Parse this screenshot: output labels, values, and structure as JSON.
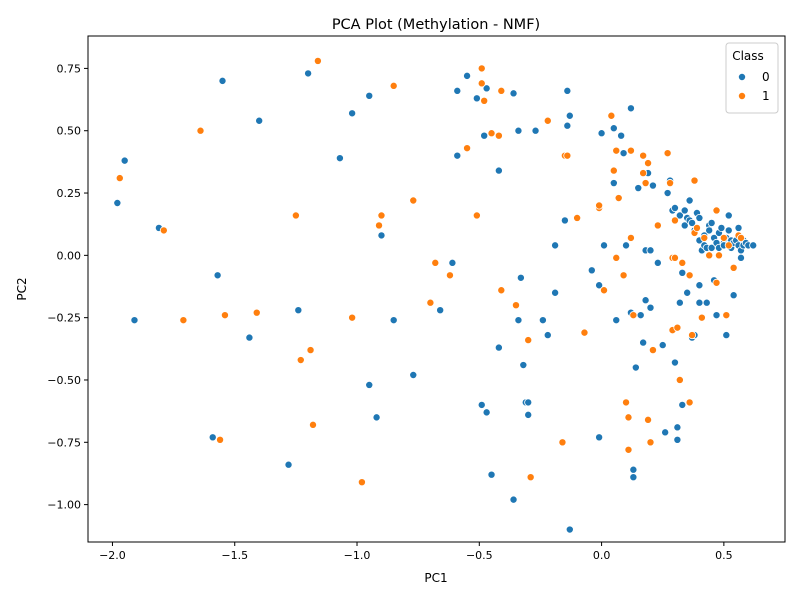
{
  "chart_data": {
    "type": "scatter",
    "title": "PCA Plot (Methylation - NMF)",
    "xlabel": "PC1",
    "ylabel": "PC2",
    "xlim": [
      -2.1,
      0.75
    ],
    "ylim": [
      -1.15,
      0.88
    ],
    "xticks": [
      -2.0,
      -1.5,
      -1.0,
      -0.5,
      0.0,
      0.5
    ],
    "xtick_labels": [
      "−2.0",
      "−1.5",
      "−1.0",
      "−0.5",
      "0.0",
      "0.5"
    ],
    "yticks": [
      -1.0,
      -0.75,
      -0.5,
      -0.25,
      0.0,
      0.25,
      0.5,
      0.75
    ],
    "ytick_labels": [
      "−1.00",
      "−0.75",
      "−0.50",
      "−0.25",
      "0.00",
      "0.25",
      "0.50",
      "0.75"
    ],
    "grid": false,
    "legend": {
      "title": "Class",
      "placement": "top-right"
    },
    "series": [
      {
        "name": "0",
        "color": "#1f77b4",
        "points": [
          [
            -1.98,
            0.21
          ],
          [
            -1.95,
            0.38
          ],
          [
            -1.91,
            -0.26
          ],
          [
            -1.81,
            0.11
          ],
          [
            -1.59,
            -0.73
          ],
          [
            -1.57,
            -0.08
          ],
          [
            -1.55,
            0.7
          ],
          [
            -1.44,
            -0.33
          ],
          [
            -1.4,
            0.54
          ],
          [
            -1.28,
            -0.84
          ],
          [
            -1.24,
            -0.22
          ],
          [
            -1.2,
            0.73
          ],
          [
            -1.07,
            0.39
          ],
          [
            -1.02,
            0.57
          ],
          [
            -0.95,
            0.64
          ],
          [
            -0.95,
            -0.52
          ],
          [
            -0.92,
            -0.65
          ],
          [
            -0.9,
            0.08
          ],
          [
            -0.85,
            -0.26
          ],
          [
            -0.77,
            -0.48
          ],
          [
            -0.66,
            -0.22
          ],
          [
            -0.61,
            -0.03
          ],
          [
            -0.59,
            0.4
          ],
          [
            -0.59,
            0.66
          ],
          [
            -0.55,
            0.72
          ],
          [
            -0.51,
            0.63
          ],
          [
            -0.49,
            -0.6
          ],
          [
            -0.48,
            0.48
          ],
          [
            -0.47,
            0.67
          ],
          [
            -0.47,
            -0.63
          ],
          [
            -0.45,
            -0.88
          ],
          [
            -0.42,
            0.34
          ],
          [
            -0.42,
            -0.37
          ],
          [
            -0.36,
            0.65
          ],
          [
            -0.36,
            -0.98
          ],
          [
            -0.34,
            0.5
          ],
          [
            -0.34,
            -0.26
          ],
          [
            -0.33,
            -0.09
          ],
          [
            -0.32,
            -0.44
          ],
          [
            -0.31,
            -0.59
          ],
          [
            -0.3,
            -0.59
          ],
          [
            -0.3,
            -0.64
          ],
          [
            -0.27,
            0.5
          ],
          [
            -0.24,
            -0.26
          ],
          [
            -0.22,
            -0.32
          ],
          [
            -0.19,
            0.04
          ],
          [
            -0.19,
            -0.15
          ],
          [
            -0.15,
            0.14
          ],
          [
            -0.14,
            0.52
          ],
          [
            -0.14,
            0.66
          ],
          [
            -0.13,
            0.56
          ],
          [
            -0.13,
            -1.1
          ],
          [
            -0.04,
            -0.06
          ],
          [
            -0.01,
            -0.73
          ],
          [
            -0.01,
            -0.12
          ],
          [
            0.0,
            0.49
          ],
          [
            0.01,
            0.04
          ],
          [
            0.05,
            0.51
          ],
          [
            0.05,
            0.29
          ],
          [
            0.06,
            -0.26
          ],
          [
            0.08,
            0.48
          ],
          [
            0.09,
            0.41
          ],
          [
            0.1,
            0.04
          ],
          [
            0.12,
            -0.23
          ],
          [
            0.12,
            0.59
          ],
          [
            0.13,
            -0.86
          ],
          [
            0.13,
            -0.89
          ],
          [
            0.14,
            -0.45
          ],
          [
            0.15,
            0.27
          ],
          [
            0.16,
            -0.24
          ],
          [
            0.17,
            -0.35
          ],
          [
            0.18,
            -0.18
          ],
          [
            0.18,
            0.02
          ],
          [
            0.19,
            0.33
          ],
          [
            0.2,
            0.02
          ],
          [
            0.2,
            -0.21
          ],
          [
            0.21,
            0.28
          ],
          [
            0.23,
            -0.03
          ],
          [
            0.25,
            -0.36
          ],
          [
            0.26,
            -0.71
          ],
          [
            0.27,
            0.25
          ],
          [
            0.28,
            0.3
          ],
          [
            0.29,
            0.18
          ],
          [
            0.3,
            0.19
          ],
          [
            0.3,
            -0.43
          ],
          [
            0.31,
            -0.69
          ],
          [
            0.31,
            -0.74
          ],
          [
            0.32,
            0.16
          ],
          [
            0.32,
            -0.19
          ],
          [
            0.33,
            -0.6
          ],
          [
            0.33,
            -0.07
          ],
          [
            0.34,
            0.12
          ],
          [
            0.34,
            0.18
          ],
          [
            0.35,
            0.15
          ],
          [
            0.35,
            -0.15
          ],
          [
            0.36,
            0.22
          ],
          [
            0.36,
            0.14
          ],
          [
            0.37,
            0.13
          ],
          [
            0.37,
            -0.33
          ],
          [
            0.38,
            -0.32
          ],
          [
            0.38,
            0.1
          ],
          [
            0.39,
            0.17
          ],
          [
            0.4,
            0.15
          ],
          [
            0.4,
            0.06
          ],
          [
            0.4,
            -0.12
          ],
          [
            0.4,
            -0.19
          ],
          [
            0.41,
            0.02
          ],
          [
            0.42,
            0.08
          ],
          [
            0.42,
            0.04
          ],
          [
            0.43,
            0.03
          ],
          [
            0.43,
            -0.19
          ],
          [
            0.44,
            0.12
          ],
          [
            0.44,
            0.1
          ],
          [
            0.45,
            0.13
          ],
          [
            0.45,
            0.03
          ],
          [
            0.46,
            0.07
          ],
          [
            0.46,
            -0.1
          ],
          [
            0.47,
            0.05
          ],
          [
            0.47,
            -0.24
          ],
          [
            0.48,
            0.09
          ],
          [
            0.48,
            0.03
          ],
          [
            0.49,
            0.11
          ],
          [
            0.5,
            0.05
          ],
          [
            0.5,
            0.04
          ],
          [
            0.51,
            -0.32
          ],
          [
            0.51,
            0.07
          ],
          [
            0.52,
            0.16
          ],
          [
            0.52,
            0.1
          ],
          [
            0.53,
            0.03
          ],
          [
            0.53,
            0.06
          ],
          [
            0.54,
            0.05
          ],
          [
            0.54,
            -0.16
          ],
          [
            0.55,
            0.06
          ],
          [
            0.56,
            0.11
          ],
          [
            0.56,
            0.04
          ],
          [
            0.57,
            -0.01
          ],
          [
            0.57,
            0.07
          ],
          [
            0.57,
            0.02
          ],
          [
            0.58,
            0.06
          ],
          [
            0.58,
            0.04
          ],
          [
            0.59,
            0.05
          ],
          [
            0.6,
            0.04
          ],
          [
            0.62,
            0.04
          ]
        ]
      },
      {
        "name": "1",
        "color": "#ff7f0e",
        "points": [
          [
            -1.97,
            0.31
          ],
          [
            -1.79,
            0.1
          ],
          [
            -1.71,
            -0.26
          ],
          [
            -1.64,
            0.5
          ],
          [
            -1.56,
            -0.74
          ],
          [
            -1.54,
            -0.24
          ],
          [
            -1.41,
            -0.23
          ],
          [
            -1.25,
            0.16
          ],
          [
            -1.23,
            -0.42
          ],
          [
            -1.19,
            -0.38
          ],
          [
            -1.18,
            -0.68
          ],
          [
            -1.16,
            0.78
          ],
          [
            -1.02,
            -0.25
          ],
          [
            -0.98,
            -0.91
          ],
          [
            -0.91,
            0.12
          ],
          [
            -0.9,
            0.16
          ],
          [
            -0.85,
            0.68
          ],
          [
            -0.77,
            0.22
          ],
          [
            -0.7,
            -0.19
          ],
          [
            -0.68,
            -0.03
          ],
          [
            -0.62,
            -0.08
          ],
          [
            -0.55,
            0.43
          ],
          [
            -0.51,
            0.16
          ],
          [
            -0.49,
            0.69
          ],
          [
            -0.49,
            0.75
          ],
          [
            -0.48,
            0.62
          ],
          [
            -0.45,
            0.49
          ],
          [
            -0.42,
            0.48
          ],
          [
            -0.41,
            0.66
          ],
          [
            -0.41,
            -0.14
          ],
          [
            -0.35,
            -0.2
          ],
          [
            -0.3,
            -0.34
          ],
          [
            -0.29,
            -0.89
          ],
          [
            -0.22,
            0.54
          ],
          [
            -0.16,
            -0.75
          ],
          [
            -0.15,
            0.4
          ],
          [
            -0.14,
            0.4
          ],
          [
            -0.1,
            0.15
          ],
          [
            -0.07,
            -0.31
          ],
          [
            -0.01,
            0.19
          ],
          [
            -0.01,
            0.2
          ],
          [
            0.01,
            -0.14
          ],
          [
            0.04,
            0.56
          ],
          [
            0.05,
            0.34
          ],
          [
            0.06,
            0.42
          ],
          [
            0.06,
            -0.01
          ],
          [
            0.07,
            0.23
          ],
          [
            0.09,
            -0.08
          ],
          [
            0.1,
            -0.59
          ],
          [
            0.11,
            -0.65
          ],
          [
            0.11,
            -0.78
          ],
          [
            0.12,
            0.42
          ],
          [
            0.12,
            0.07
          ],
          [
            0.13,
            -0.24
          ],
          [
            0.17,
            0.33
          ],
          [
            0.17,
            0.4
          ],
          [
            0.18,
            0.29
          ],
          [
            0.19,
            0.37
          ],
          [
            0.19,
            -0.66
          ],
          [
            0.2,
            -0.75
          ],
          [
            0.21,
            -0.38
          ],
          [
            0.23,
            0.12
          ],
          [
            0.27,
            0.41
          ],
          [
            0.28,
            0.29
          ],
          [
            0.29,
            -0.3
          ],
          [
            0.29,
            -0.01
          ],
          [
            0.3,
            -0.01
          ],
          [
            0.3,
            0.14
          ],
          [
            0.31,
            -0.29
          ],
          [
            0.32,
            -0.5
          ],
          [
            0.33,
            -0.03
          ],
          [
            0.36,
            -0.08
          ],
          [
            0.36,
            -0.59
          ],
          [
            0.37,
            -0.32
          ],
          [
            0.38,
            0.09
          ],
          [
            0.38,
            0.3
          ],
          [
            0.39,
            0.11
          ],
          [
            0.41,
            -0.25
          ],
          [
            0.42,
            0.07
          ],
          [
            0.44,
            0.0
          ],
          [
            0.47,
            0.18
          ],
          [
            0.47,
            -0.11
          ],
          [
            0.48,
            0.0
          ],
          [
            0.5,
            0.07
          ],
          [
            0.51,
            -0.24
          ],
          [
            0.52,
            0.04
          ],
          [
            0.54,
            -0.05
          ],
          [
            0.56,
            0.08
          ],
          [
            0.57,
            0.07
          ]
        ]
      }
    ]
  }
}
